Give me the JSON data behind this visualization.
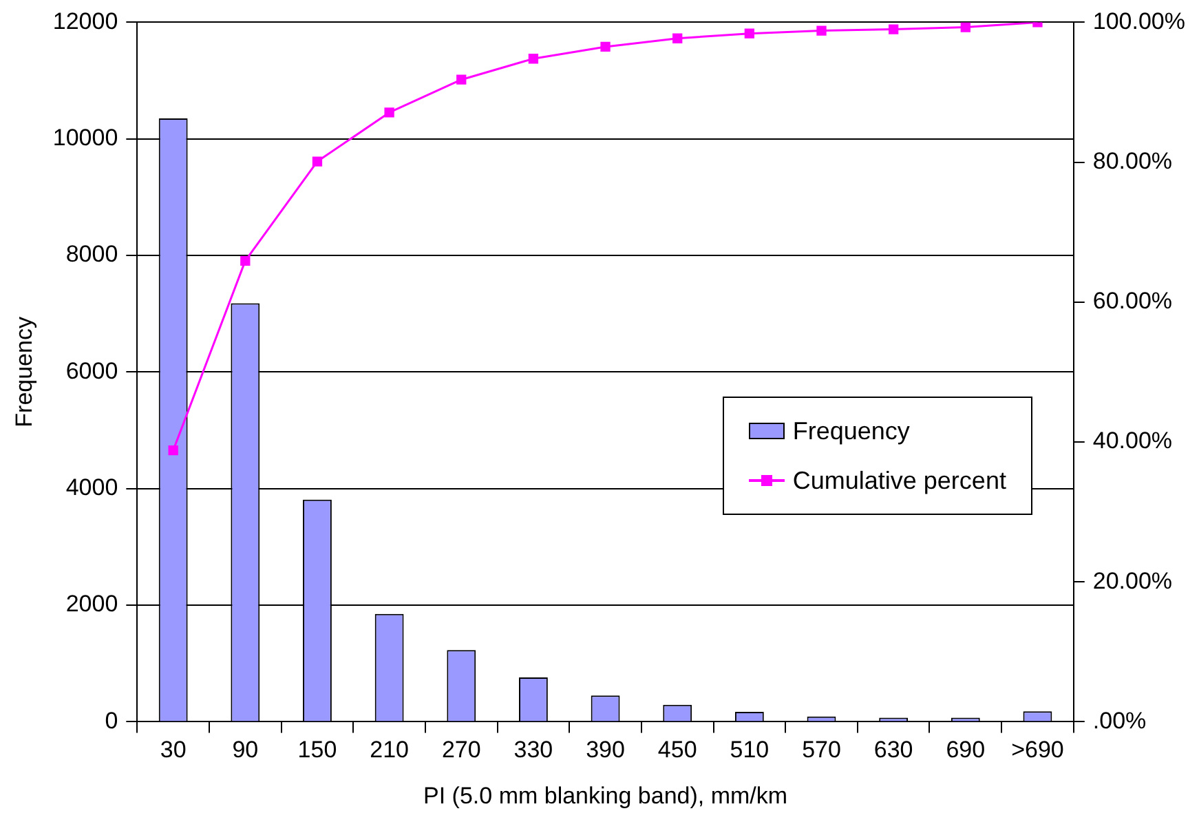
{
  "chart_data": {
    "type": "bar",
    "xlabel": "PI (5.0 mm blanking band), mm/km",
    "ylabel": "Frequency",
    "categories": [
      "30",
      "90",
      "150",
      "210",
      "270",
      "330",
      "390",
      "450",
      "510",
      "570",
      "630",
      "690",
      ">690"
    ],
    "series": [
      {
        "name": "Frequency",
        "color": "#9999ff",
        "values": [
          10350,
          7180,
          3810,
          1850,
          1230,
          760,
          450,
          290,
          170,
          90,
          70,
          70,
          180
        ]
      },
      {
        "name": "Cumulative percent",
        "type": "line",
        "axis": "y2",
        "color": "#ff00ff",
        "marker": "square",
        "values": [
          38.8,
          65.9,
          80.1,
          87.1,
          91.8,
          94.8,
          96.5,
          97.7,
          98.4,
          98.8,
          99.0,
          99.3,
          100
        ]
      }
    ],
    "ylim": [
      0,
      12000
    ],
    "yticks": [
      0,
      2000,
      4000,
      6000,
      8000,
      10000,
      12000
    ],
    "y2lim": [
      0,
      100
    ],
    "y2ticks": [
      {
        "value": 0,
        "label": ".00%"
      },
      {
        "value": 20,
        "label": "20.00%"
      },
      {
        "value": 40,
        "label": "40.00%"
      },
      {
        "value": 60,
        "label": "60.00%"
      },
      {
        "value": 80,
        "label": "80.00%"
      },
      {
        "value": 100,
        "label": "100.00%"
      }
    ],
    "grid": "y",
    "legend": "right"
  }
}
